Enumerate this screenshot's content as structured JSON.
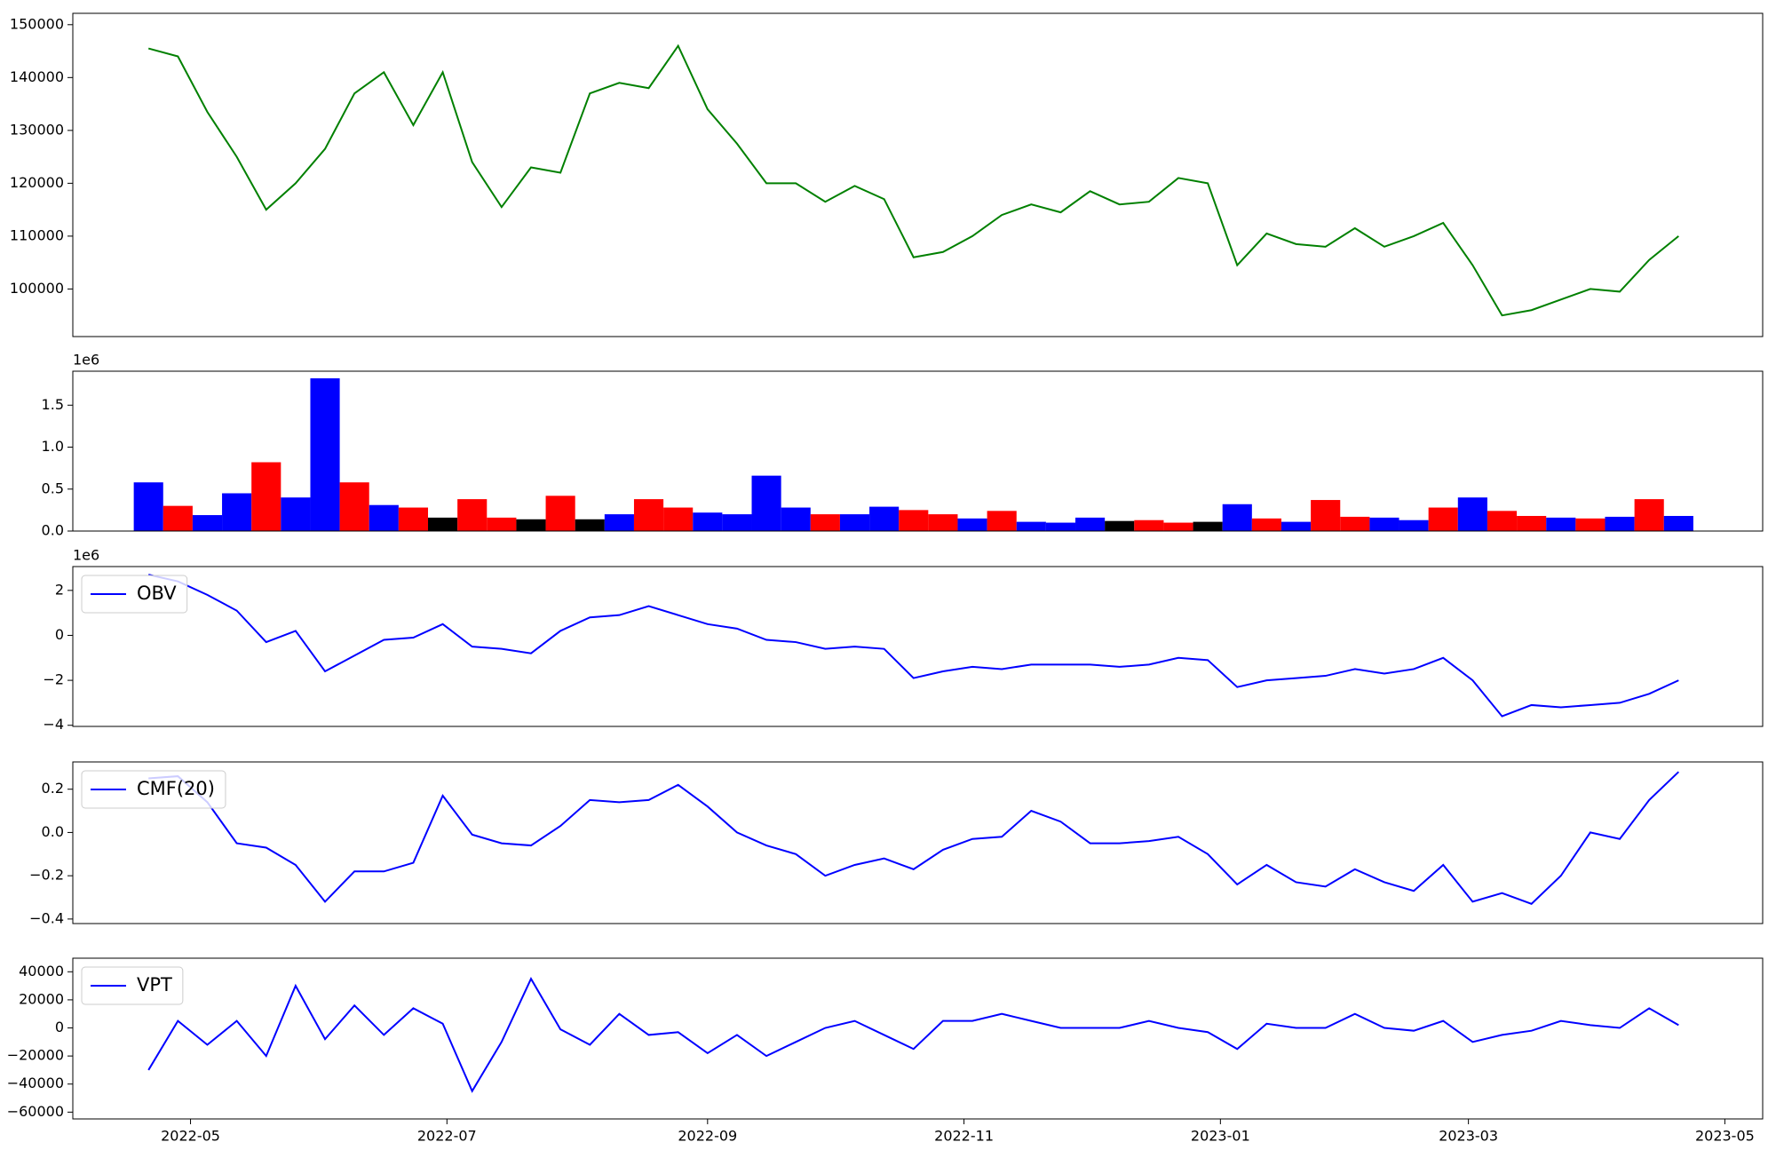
{
  "chart_data": [
    {
      "type": "line",
      "xlim": [
        "2022-04-03",
        "2023-05-10"
      ],
      "x": [
        "2022-04-21",
        "2022-04-28",
        "2022-05-05",
        "2022-05-12",
        "2022-05-19",
        "2022-05-26",
        "2022-06-02",
        "2022-06-09",
        "2022-06-16",
        "2022-06-23",
        "2022-06-30",
        "2022-07-07",
        "2022-07-14",
        "2022-07-21",
        "2022-07-28",
        "2022-08-04",
        "2022-08-11",
        "2022-08-18",
        "2022-08-25",
        "2022-09-01",
        "2022-09-08",
        "2022-09-15",
        "2022-09-22",
        "2022-09-29",
        "2022-10-06",
        "2022-10-13",
        "2022-10-20",
        "2022-10-27",
        "2022-11-03",
        "2022-11-10",
        "2022-11-17",
        "2022-11-24",
        "2022-12-01",
        "2022-12-08",
        "2022-12-15",
        "2022-12-22",
        "2022-12-29",
        "2023-01-05",
        "2023-01-12",
        "2023-01-19",
        "2023-01-26",
        "2023-02-02",
        "2023-02-09",
        "2023-02-16",
        "2023-02-23",
        "2023-03-02",
        "2023-03-09",
        "2023-03-16",
        "2023-03-23",
        "2023-03-30",
        "2023-04-06",
        "2023-04-13",
        "2023-04-20"
      ],
      "series": [
        {
          "color": "#008000",
          "values": [
            145500,
            144000,
            133500,
            125000,
            115000,
            120000,
            126500,
            137000,
            141000,
            131000,
            141000,
            124000,
            115500,
            123000,
            122000,
            137000,
            139000,
            138000,
            146000,
            134000,
            127500,
            120000,
            120000,
            116500,
            119500,
            117000,
            106000,
            107000,
            110000,
            114000,
            116000,
            114500,
            118500,
            116000,
            116500,
            121000,
            120000,
            104500,
            110500,
            108500,
            108000,
            111500,
            108000,
            110000,
            112500,
            104500,
            95000,
            96000,
            98000,
            100000,
            99500,
            105500,
            110000
          ]
        }
      ],
      "ylim": [
        91000,
        152150
      ],
      "yticks": [
        100000,
        110000,
        120000,
        130000,
        140000,
        150000
      ]
    },
    {
      "type": "bar",
      "xlim": [
        "2022-04-03",
        "2023-05-10"
      ],
      "x": [
        "2022-04-21",
        "2022-04-28",
        "2022-05-05",
        "2022-05-12",
        "2022-05-19",
        "2022-05-26",
        "2022-06-02",
        "2022-06-09",
        "2022-06-16",
        "2022-06-23",
        "2022-06-30",
        "2022-07-07",
        "2022-07-14",
        "2022-07-21",
        "2022-07-28",
        "2022-08-04",
        "2022-08-11",
        "2022-08-18",
        "2022-08-25",
        "2022-09-01",
        "2022-09-08",
        "2022-09-15",
        "2022-09-22",
        "2022-09-29",
        "2022-10-06",
        "2022-10-13",
        "2022-10-20",
        "2022-10-27",
        "2022-11-03",
        "2022-11-10",
        "2022-11-17",
        "2022-11-24",
        "2022-12-01",
        "2022-12-08",
        "2022-12-15",
        "2022-12-22",
        "2022-12-29",
        "2023-01-05",
        "2023-01-12",
        "2023-01-19",
        "2023-01-26",
        "2023-02-02",
        "2023-02-09",
        "2023-02-16",
        "2023-02-23",
        "2023-03-02",
        "2023-03-09",
        "2023-03-16",
        "2023-03-23",
        "2023-03-30",
        "2023-04-06",
        "2023-04-13",
        "2023-04-20"
      ],
      "series": [
        {
          "values": [
            580000,
            300000,
            190000,
            450000,
            820000,
            400000,
            1820000,
            580000,
            310000,
            280000,
            160000,
            380000,
            160000,
            140000,
            420000,
            140000,
            200000,
            380000,
            280000,
            220000,
            200000,
            660000,
            280000,
            200000,
            200000,
            290000,
            250000,
            200000,
            150000,
            240000,
            110000,
            100000,
            160000,
            120000,
            130000,
            100000,
            110000,
            320000,
            150000,
            110000,
            370000,
            170000,
            160000,
            130000,
            280000,
            400000,
            240000,
            180000,
            160000,
            150000,
            170000,
            380000,
            180000
          ],
          "colors": [
            "#0000ff",
            "#ff0000",
            "#0000ff",
            "#0000ff",
            "#ff0000",
            "#0000ff",
            "#0000ff",
            "#ff0000",
            "#0000ff",
            "#ff0000",
            "#000000",
            "#ff0000",
            "#ff0000",
            "#000000",
            "#ff0000",
            "#000000",
            "#0000ff",
            "#ff0000",
            "#ff0000",
            "#0000ff",
            "#0000ff",
            "#0000ff",
            "#0000ff",
            "#ff0000",
            "#0000ff",
            "#0000ff",
            "#ff0000",
            "#ff0000",
            "#0000ff",
            "#ff0000",
            "#0000ff",
            "#0000ff",
            "#0000ff",
            "#000000",
            "#ff0000",
            "#ff0000",
            "#000000",
            "#0000ff",
            "#ff0000",
            "#0000ff",
            "#ff0000",
            "#ff0000",
            "#0000ff",
            "#0000ff",
            "#ff0000",
            "#0000ff",
            "#ff0000",
            "#ff0000",
            "#0000ff",
            "#ff0000",
            "#0000ff",
            "#ff0000",
            "#0000ff"
          ]
        }
      ],
      "ylim": [
        0,
        1905000
      ],
      "offset_label": "1e6",
      "yticks": [
        {
          "value": 0,
          "label": "0.0"
        },
        {
          "value": 500000,
          "label": "0.5"
        },
        {
          "value": 1000000,
          "label": "1.0"
        },
        {
          "value": 1500000,
          "label": "1.5"
        }
      ]
    },
    {
      "type": "line",
      "xlim": [
        "2022-04-03",
        "2023-05-10"
      ],
      "legend": "upper left",
      "x": [
        "2022-04-21",
        "2022-04-28",
        "2022-05-05",
        "2022-05-12",
        "2022-05-19",
        "2022-05-26",
        "2022-06-02",
        "2022-06-09",
        "2022-06-16",
        "2022-06-23",
        "2022-06-30",
        "2022-07-07",
        "2022-07-14",
        "2022-07-21",
        "2022-07-28",
        "2022-08-04",
        "2022-08-11",
        "2022-08-18",
        "2022-08-25",
        "2022-09-01",
        "2022-09-08",
        "2022-09-15",
        "2022-09-22",
        "2022-09-29",
        "2022-10-06",
        "2022-10-13",
        "2022-10-20",
        "2022-10-27",
        "2022-11-03",
        "2022-11-10",
        "2022-11-17",
        "2022-11-24",
        "2022-12-01",
        "2022-12-08",
        "2022-12-15",
        "2022-12-22",
        "2022-12-29",
        "2023-01-05",
        "2023-01-12",
        "2023-01-19",
        "2023-01-26",
        "2023-02-02",
        "2023-02-09",
        "2023-02-16",
        "2023-02-23",
        "2023-03-02",
        "2023-03-09",
        "2023-03-16",
        "2023-03-23",
        "2023-03-30",
        "2023-04-06",
        "2023-04-13",
        "2023-04-20"
      ],
      "series": [
        {
          "name": "OBV",
          "color": "#0000ff",
          "values": [
            2700000,
            2400000,
            1800000,
            1100000,
            -300000,
            200000,
            -1600000,
            -900000,
            -200000,
            -100000,
            500000,
            -500000,
            -600000,
            -800000,
            200000,
            800000,
            900000,
            1300000,
            900000,
            500000,
            300000,
            -200000,
            -300000,
            -600000,
            -500000,
            -600000,
            -1900000,
            -1600000,
            -1400000,
            -1500000,
            -1300000,
            -1300000,
            -1300000,
            -1400000,
            -1300000,
            -1000000,
            -1100000,
            -2300000,
            -2000000,
            -1900000,
            -1800000,
            -1500000,
            -1700000,
            -1500000,
            -1000000,
            -2000000,
            -3600000,
            -3100000,
            -3200000,
            -3100000,
            -3000000,
            -2600000,
            -2000000
          ]
        }
      ],
      "ylim": [
        -4050000,
        3060000
      ],
      "offset_label": "1e6",
      "yticks": [
        {
          "value": -4000000,
          "label": "−4"
        },
        {
          "value": -2000000,
          "label": "−2"
        },
        0,
        {
          "value": 2000000,
          "label": "2"
        }
      ]
    },
    {
      "type": "line",
      "xlim": [
        "2022-04-03",
        "2023-05-10"
      ],
      "legend": "upper left",
      "x": [
        "2022-04-21",
        "2022-04-28",
        "2022-05-05",
        "2022-05-12",
        "2022-05-19",
        "2022-05-26",
        "2022-06-02",
        "2022-06-09",
        "2022-06-16",
        "2022-06-23",
        "2022-06-30",
        "2022-07-07",
        "2022-07-14",
        "2022-07-21",
        "2022-07-28",
        "2022-08-04",
        "2022-08-11",
        "2022-08-18",
        "2022-08-25",
        "2022-09-01",
        "2022-09-08",
        "2022-09-15",
        "2022-09-22",
        "2022-09-29",
        "2022-10-06",
        "2022-10-13",
        "2022-10-20",
        "2022-10-27",
        "2022-11-03",
        "2022-11-10",
        "2022-11-17",
        "2022-11-24",
        "2022-12-01",
        "2022-12-08",
        "2022-12-15",
        "2022-12-22",
        "2022-12-29",
        "2023-01-05",
        "2023-01-12",
        "2023-01-19",
        "2023-01-26",
        "2023-02-02",
        "2023-02-09",
        "2023-02-16",
        "2023-02-23",
        "2023-03-02",
        "2023-03-09",
        "2023-03-16",
        "2023-03-23",
        "2023-03-30",
        "2023-04-06",
        "2023-04-13",
        "2023-04-20"
      ],
      "series": [
        {
          "name": "CMF(20)",
          "color": "#0000ff",
          "values": [
            0.25,
            0.26,
            0.14,
            -0.05,
            -0.07,
            -0.15,
            -0.32,
            -0.18,
            -0.18,
            -0.14,
            0.17,
            -0.01,
            -0.05,
            -0.06,
            0.03,
            0.15,
            0.14,
            0.15,
            0.22,
            0.12,
            0.0,
            -0.06,
            -0.1,
            -0.2,
            -0.15,
            -0.12,
            -0.17,
            -0.08,
            -0.03,
            -0.02,
            0.1,
            0.05,
            -0.05,
            -0.05,
            -0.04,
            -0.02,
            -0.1,
            -0.24,
            -0.15,
            -0.23,
            -0.25,
            -0.17,
            -0.23,
            -0.27,
            -0.15,
            -0.32,
            -0.28,
            -0.33,
            -0.2,
            0.0,
            -0.03,
            0.15,
            0.28
          ]
        }
      ],
      "ylim": [
        -0.421,
        0.326
      ],
      "yticks": [
        {
          "value": -0.4,
          "label": "−0.4"
        },
        {
          "value": -0.2,
          "label": "−0.2"
        },
        {
          "value": 0,
          "label": "0.0"
        },
        0.2
      ]
    },
    {
      "type": "line",
      "xlim": [
        "2022-04-03",
        "2023-05-10"
      ],
      "legend": "upper left",
      "x": [
        "2022-04-21",
        "2022-04-28",
        "2022-05-05",
        "2022-05-12",
        "2022-05-19",
        "2022-05-26",
        "2022-06-02",
        "2022-06-09",
        "2022-06-16",
        "2022-06-23",
        "2022-06-30",
        "2022-07-07",
        "2022-07-14",
        "2022-07-21",
        "2022-07-28",
        "2022-08-04",
        "2022-08-11",
        "2022-08-18",
        "2022-08-25",
        "2022-09-01",
        "2022-09-08",
        "2022-09-15",
        "2022-09-22",
        "2022-09-29",
        "2022-10-06",
        "2022-10-13",
        "2022-10-20",
        "2022-10-27",
        "2022-11-03",
        "2022-11-10",
        "2022-11-17",
        "2022-11-24",
        "2022-12-01",
        "2022-12-08",
        "2022-12-15",
        "2022-12-22",
        "2022-12-29",
        "2023-01-05",
        "2023-01-12",
        "2023-01-19",
        "2023-01-26",
        "2023-02-02",
        "2023-02-09",
        "2023-02-16",
        "2023-02-23",
        "2023-03-02",
        "2023-03-09",
        "2023-03-16",
        "2023-03-23",
        "2023-03-30",
        "2023-04-06",
        "2023-04-13",
        "2023-04-20"
      ],
      "series": [
        {
          "name": "VPT",
          "color": "#0000ff",
          "values": [
            -30000,
            5000,
            -12000,
            5000,
            -20000,
            30000,
            -8000,
            16000,
            -5000,
            14000,
            3000,
            -45000,
            -10000,
            35000,
            -1000,
            -12000,
            10000,
            -5000,
            -3000,
            -18000,
            -5000,
            -20000,
            -10000,
            0,
            5000,
            -5000,
            -15000,
            5000,
            5000,
            10000,
            5000,
            0,
            0,
            0,
            5000,
            0,
            -3000,
            -15000,
            3000,
            0,
            0,
            10000,
            0,
            -2000,
            5000,
            -10000,
            -5000,
            -2000,
            5000,
            2000,
            0,
            14000,
            2000
          ]
        }
      ],
      "ylim": [
        -64840,
        49680
      ],
      "yticks": [
        {
          "value": -60000,
          "label": "−60000"
        },
        {
          "value": -40000,
          "label": "−40000"
        },
        {
          "value": -20000,
          "label": "−20000"
        },
        0,
        20000,
        40000
      ],
      "xticks": [
        {
          "value": "2022-05-01",
          "label": "2022-05"
        },
        {
          "value": "2022-07-01",
          "label": "2022-07"
        },
        {
          "value": "2022-09-01",
          "label": "2022-09"
        },
        {
          "value": "2022-11-01",
          "label": "2022-11"
        },
        {
          "value": "2023-01-01",
          "label": "2023-01"
        },
        {
          "value": "2023-03-01",
          "label": "2023-03"
        },
        {
          "value": "2023-05-01",
          "label": "2023-05"
        }
      ]
    }
  ]
}
